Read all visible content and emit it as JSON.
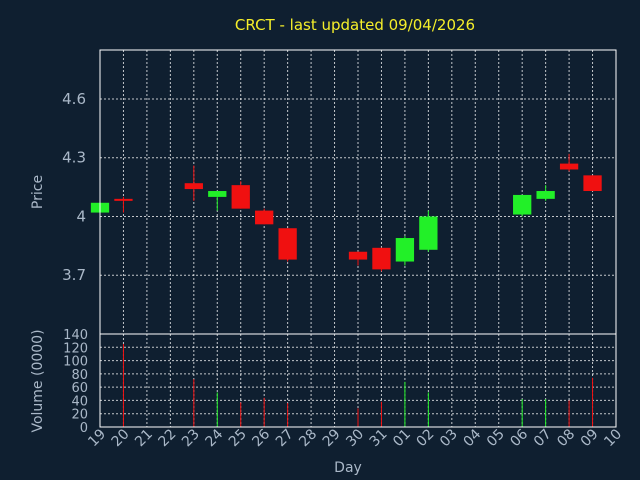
{
  "chart_data": {
    "type": "candlestick",
    "title": "CRCT - last updated 09/04/2026",
    "xlabel": "Day",
    "price_panel": {
      "ylabel": "Price",
      "ylim": [
        3.4,
        4.85
      ],
      "yticks": [
        3.7,
        4,
        4.3,
        4.6
      ],
      "ytick_labels": [
        "3.7",
        "4",
        "4.3",
        "4.6"
      ]
    },
    "volume_panel": {
      "ylabel": "Volume (0000)",
      "ylim": [
        0,
        140
      ],
      "yticks": [
        0,
        20,
        40,
        60,
        80,
        100,
        120,
        140
      ],
      "ytick_labels": [
        "0",
        "20",
        "40",
        "60",
        "80",
        "100",
        "120",
        "140"
      ]
    },
    "x_labels": [
      "19",
      "20",
      "21",
      "22",
      "23",
      "24",
      "25",
      "26",
      "27",
      "28",
      "29",
      "30",
      "31",
      "01",
      "02",
      "03",
      "04",
      "05",
      "06",
      "07",
      "08",
      "09",
      "10"
    ],
    "candles": [
      {
        "day": "19",
        "open": 4.02,
        "high": 4.08,
        "low": 4.02,
        "close": 4.07,
        "volume": 0
      },
      {
        "day": "20",
        "open": 4.09,
        "high": 4.1,
        "low": 4.02,
        "close": 4.08,
        "volume": 125
      },
      {
        "day": "23",
        "open": 4.17,
        "high": 4.26,
        "low": 4.08,
        "close": 4.14,
        "volume": 72
      },
      {
        "day": "24",
        "open": 4.1,
        "high": 4.13,
        "low": 4.03,
        "close": 4.13,
        "volume": 52
      },
      {
        "day": "25",
        "open": 4.16,
        "high": 4.18,
        "low": 4.04,
        "close": 4.04,
        "volume": 37
      },
      {
        "day": "26",
        "open": 4.03,
        "high": 4.04,
        "low": 3.96,
        "close": 3.96,
        "volume": 44
      },
      {
        "day": "27",
        "open": 3.94,
        "high": 3.94,
        "low": 3.77,
        "close": 3.78,
        "volume": 36
      },
      {
        "day": "30",
        "open": 3.82,
        "high": 3.82,
        "low": 3.75,
        "close": 3.78,
        "volume": 28
      },
      {
        "day": "31",
        "open": 3.84,
        "high": 3.84,
        "low": 3.72,
        "close": 3.73,
        "volume": 38
      },
      {
        "day": "01",
        "open": 3.77,
        "high": 3.9,
        "low": 3.75,
        "close": 3.89,
        "volume": 68
      },
      {
        "day": "02",
        "open": 3.83,
        "high": 4.03,
        "low": 3.82,
        "close": 4.0,
        "volume": 52
      },
      {
        "day": "06",
        "open": 4.01,
        "high": 4.11,
        "low": 4.0,
        "close": 4.11,
        "volume": 42
      },
      {
        "day": "07",
        "open": 4.09,
        "high": 4.16,
        "low": 4.08,
        "close": 4.13,
        "volume": 42
      },
      {
        "day": "08",
        "open": 4.27,
        "high": 4.32,
        "low": 4.23,
        "close": 4.24,
        "volume": 40
      },
      {
        "day": "09",
        "open": 4.21,
        "high": 4.21,
        "low": 4.13,
        "close": 4.13,
        "volume": 74
      }
    ],
    "colors": {
      "background": "#0f1f30",
      "up": "#22f028",
      "down": "#f01010",
      "grid": "#ffffff",
      "title": "#f5ef2a",
      "labels": "#aab8c8"
    },
    "grid": true
  }
}
